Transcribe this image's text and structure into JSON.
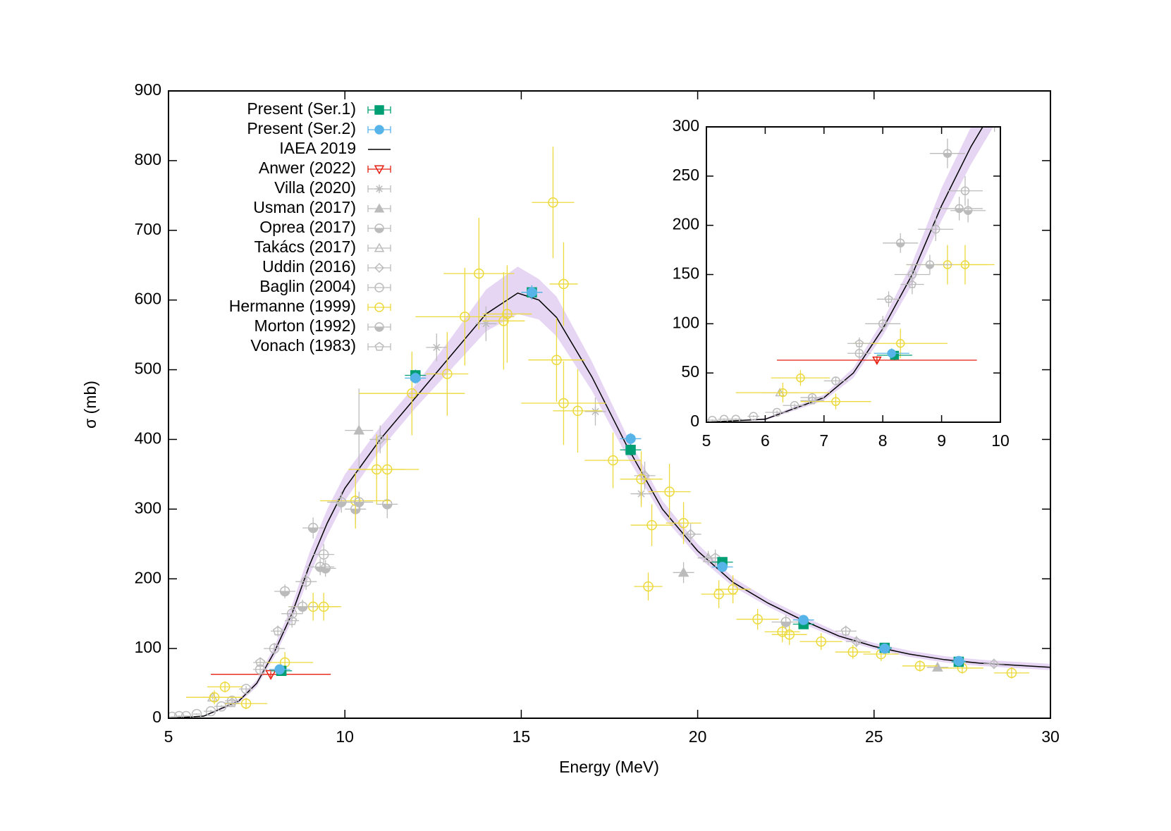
{
  "chart_data": {
    "type": "scatter",
    "xlabel": "Energy (MeV)",
    "ylabel": "σ (mb)",
    "xlim": [
      5,
      30
    ],
    "ylim": [
      0,
      900
    ],
    "xticks": [
      5,
      10,
      15,
      20,
      25,
      30
    ],
    "yticks": [
      0,
      100,
      200,
      300,
      400,
      500,
      600,
      700,
      800,
      900
    ],
    "inset": {
      "xlim": [
        5,
        10
      ],
      "ylim": [
        0,
        300
      ],
      "xticks": [
        5,
        6,
        7,
        8,
        9,
        10
      ],
      "yticks": [
        0,
        50,
        100,
        150,
        200,
        250,
        300
      ]
    },
    "series": [
      {
        "name": "Present (Ser.1)",
        "color": "#009e73",
        "marker": "square",
        "x": [
          8.2,
          12.0,
          15.3,
          18.1,
          20.7,
          23.0,
          25.3,
          27.4
        ],
        "values": [
          68,
          492,
          611,
          385,
          224,
          135,
          101,
          81
        ],
        "xerr": [
          0.3,
          0.3,
          0.3,
          0.3,
          0.3,
          0.3,
          0.2,
          0.2
        ],
        "yerr": [
          5,
          8,
          10,
          8,
          6,
          5,
          4,
          4
        ]
      },
      {
        "name": "Present (Ser.2)",
        "color": "#56b4e9",
        "marker": "circle",
        "x": [
          8.15,
          12.0,
          15.3,
          18.1,
          20.7,
          23.0,
          25.3,
          27.4
        ],
        "values": [
          70,
          488,
          611,
          401,
          217,
          141,
          100,
          82
        ],
        "xerr": [
          0.3,
          0.3,
          0.3,
          0.3,
          0.3,
          0.3,
          0.2,
          0.2
        ],
        "yerr": [
          5,
          8,
          10,
          8,
          6,
          5,
          4,
          4
        ]
      },
      {
        "name": "IAEA 2019",
        "color": "#000000",
        "marker": "line",
        "band_color": "#e6d6f4",
        "x": [
          5,
          6,
          7,
          7.5,
          8,
          8.5,
          9,
          9.5,
          10,
          11,
          12,
          13,
          14,
          14.9,
          15.5,
          16,
          17,
          18,
          19,
          20,
          21,
          22,
          23,
          24,
          25,
          26,
          27,
          28,
          30
        ],
        "values": [
          0,
          3,
          25,
          50,
          95,
          150,
          220,
          280,
          330,
          400,
          460,
          520,
          580,
          610,
          600,
          575,
          490,
          390,
          300,
          240,
          195,
          165,
          140,
          118,
          103,
          92,
          84,
          79,
          73
        ],
        "band_lower": [
          0,
          2,
          22,
          45,
          88,
          140,
          205,
          262,
          312,
          385,
          445,
          500,
          555,
          580,
          572,
          548,
          470,
          375,
          290,
          232,
          189,
          160,
          135,
          114,
          99,
          88,
          80,
          75,
          69
        ],
        "band_upper": [
          0,
          4,
          28,
          55,
          103,
          162,
          238,
          300,
          350,
          418,
          478,
          545,
          615,
          648,
          630,
          605,
          512,
          405,
          312,
          250,
          202,
          171,
          146,
          123,
          108,
          97,
          89,
          84,
          78
        ]
      },
      {
        "name": "Anwer (2022)",
        "color": "#e51e10",
        "marker": "tri-down-open",
        "x": [
          7.9
        ],
        "values": [
          63
        ],
        "xerr": [
          1.7
        ],
        "yerr": [
          4
        ]
      },
      {
        "name": "Villa (2020)",
        "color": "#bbbbbb",
        "marker": "star",
        "x": [
          12.6,
          14.0,
          17.1,
          18.4
        ],
        "values": [
          532,
          566,
          440,
          322
        ],
        "xerr": [
          0.3,
          0.3,
          0.3,
          0.3
        ],
        "yerr": [
          20,
          25,
          20,
          15
        ]
      },
      {
        "name": "Usman (2017)",
        "color": "#bbbbbb",
        "marker": "triangle",
        "x": [
          10.4,
          19.6,
          26.8
        ],
        "values": [
          413,
          209,
          73
        ],
        "xerr": [
          0.4,
          0.3,
          0.3
        ],
        "yerr": [
          60,
          15,
          5
        ]
      },
      {
        "name": "Oprea (2017)",
        "color": "#bbbbbb",
        "marker": "circle-half",
        "x": [
          8.3,
          9.1,
          9.45,
          10.3,
          11.2
        ],
        "values": [
          182,
          273,
          215,
          300,
          307
        ],
        "xerr": [
          0.3,
          0.3,
          0.3,
          0.3,
          0.3
        ],
        "yerr": [
          10,
          15,
          12,
          20,
          20
        ]
      },
      {
        "name": "Takács (2017)",
        "color": "#bbbbbb",
        "marker": "triangle-open",
        "x": [
          6.25,
          20.3
        ],
        "values": [
          30,
          230
        ],
        "xerr": [
          0.3,
          0.3
        ],
        "yerr": [
          3,
          10
        ]
      },
      {
        "name": "Uddin (2016)",
        "color": "#bbbbbb",
        "marker": "diamond-open",
        "x": [
          11.0,
          18.5,
          19.8,
          24.5,
          28.4
        ],
        "values": [
          400,
          348,
          264,
          110,
          78
        ],
        "xerr": [
          0.3,
          0.3,
          0.3,
          0.3,
          0.3
        ],
        "yerr": [
          20,
          20,
          15,
          8,
          5
        ]
      },
      {
        "name": "Baglin (2004)",
        "color": "#bbbbbb",
        "marker": "circle-open",
        "x": [
          5.1,
          5.3,
          5.5,
          5.8,
          6.2,
          6.5,
          6.8,
          7.2,
          7.6,
          8.0,
          8.5,
          8.9,
          9.4
        ],
        "values": [
          2,
          3,
          3,
          6,
          10,
          17,
          25,
          42,
          70,
          100,
          150,
          196,
          235
        ],
        "xerr": [
          0.1,
          0.1,
          0.1,
          0.1,
          0.2,
          0.2,
          0.2,
          0.2,
          0.2,
          0.3,
          0.3,
          0.3,
          0.3
        ],
        "yerr": [
          1,
          1,
          1,
          1,
          2,
          2,
          3,
          4,
          6,
          8,
          10,
          12,
          15
        ]
      },
      {
        "name": "Hermanne (1999)",
        "color": "#ecd93b",
        "marker": "circle-open",
        "x": [
          6.3,
          6.6,
          7.2,
          8.3,
          9.1,
          9.4,
          10.3,
          10.9,
          11.2,
          11.9,
          12.9,
          13.4,
          13.8,
          14.5,
          14.6,
          15.9,
          16.0,
          16.2,
          16.2,
          16.6,
          17.6,
          18.4,
          19.2,
          18.7,
          19.6,
          18.6,
          20.6,
          21.0,
          21.7,
          22.4,
          22.6,
          23.5,
          24.4,
          25.2,
          26.3,
          27.5,
          28.9
        ],
        "values": [
          30,
          45,
          21,
          80,
          160,
          160,
          312,
          357,
          357,
          466,
          494,
          576,
          638,
          570,
          580,
          740,
          514,
          623,
          452,
          441,
          370,
          343,
          325,
          277,
          280,
          189,
          178,
          185,
          142,
          124,
          120,
          110,
          95,
          92,
          75,
          72,
          65
        ],
        "xerr": [
          0.8,
          0.5,
          0.6,
          0.8,
          0.7,
          0.5,
          1.0,
          0.8,
          0.9,
          1.5,
          0.6,
          1.4,
          1.0,
          0.6,
          0.7,
          0.6,
          0.8,
          0.4,
          1.2,
          0.7,
          0.8,
          0.6,
          0.6,
          0.6,
          0.5,
          0.4,
          0.5,
          0.5,
          0.6,
          0.5,
          0.5,
          0.6,
          0.5,
          0.5,
          0.5,
          0.6,
          0.5
        ],
        "yerr": [
          10,
          8,
          8,
          15,
          20,
          20,
          40,
          50,
          50,
          60,
          60,
          70,
          80,
          70,
          70,
          80,
          60,
          60,
          60,
          60,
          40,
          40,
          40,
          30,
          30,
          20,
          20,
          20,
          15,
          15,
          15,
          12,
          10,
          10,
          8,
          8,
          8
        ]
      },
      {
        "name": "Morton (1992)",
        "color": "#bbbbbb",
        "marker": "circle-half",
        "x": [
          8.8,
          9.3,
          9.9,
          10.4,
          22.5
        ],
        "values": [
          160,
          217,
          310,
          310,
          138
        ],
        "xerr": [
          0.4,
          0.4,
          0.4,
          0.4,
          0.4
        ],
        "yerr": [
          10,
          12,
          15,
          15,
          10
        ]
      },
      {
        "name": "Vonach (1983)",
        "color": "#bbbbbb",
        "marker": "pentagon-open",
        "x": [
          6.8,
          7.6,
          8.1,
          8.5,
          20.5,
          24.2
        ],
        "values": [
          22,
          80,
          125,
          140,
          230,
          125
        ],
        "xerr": [
          0.2,
          0.2,
          0.2,
          0.2,
          0.3,
          0.3
        ],
        "yerr": [
          3,
          6,
          8,
          10,
          12,
          8
        ]
      }
    ]
  }
}
